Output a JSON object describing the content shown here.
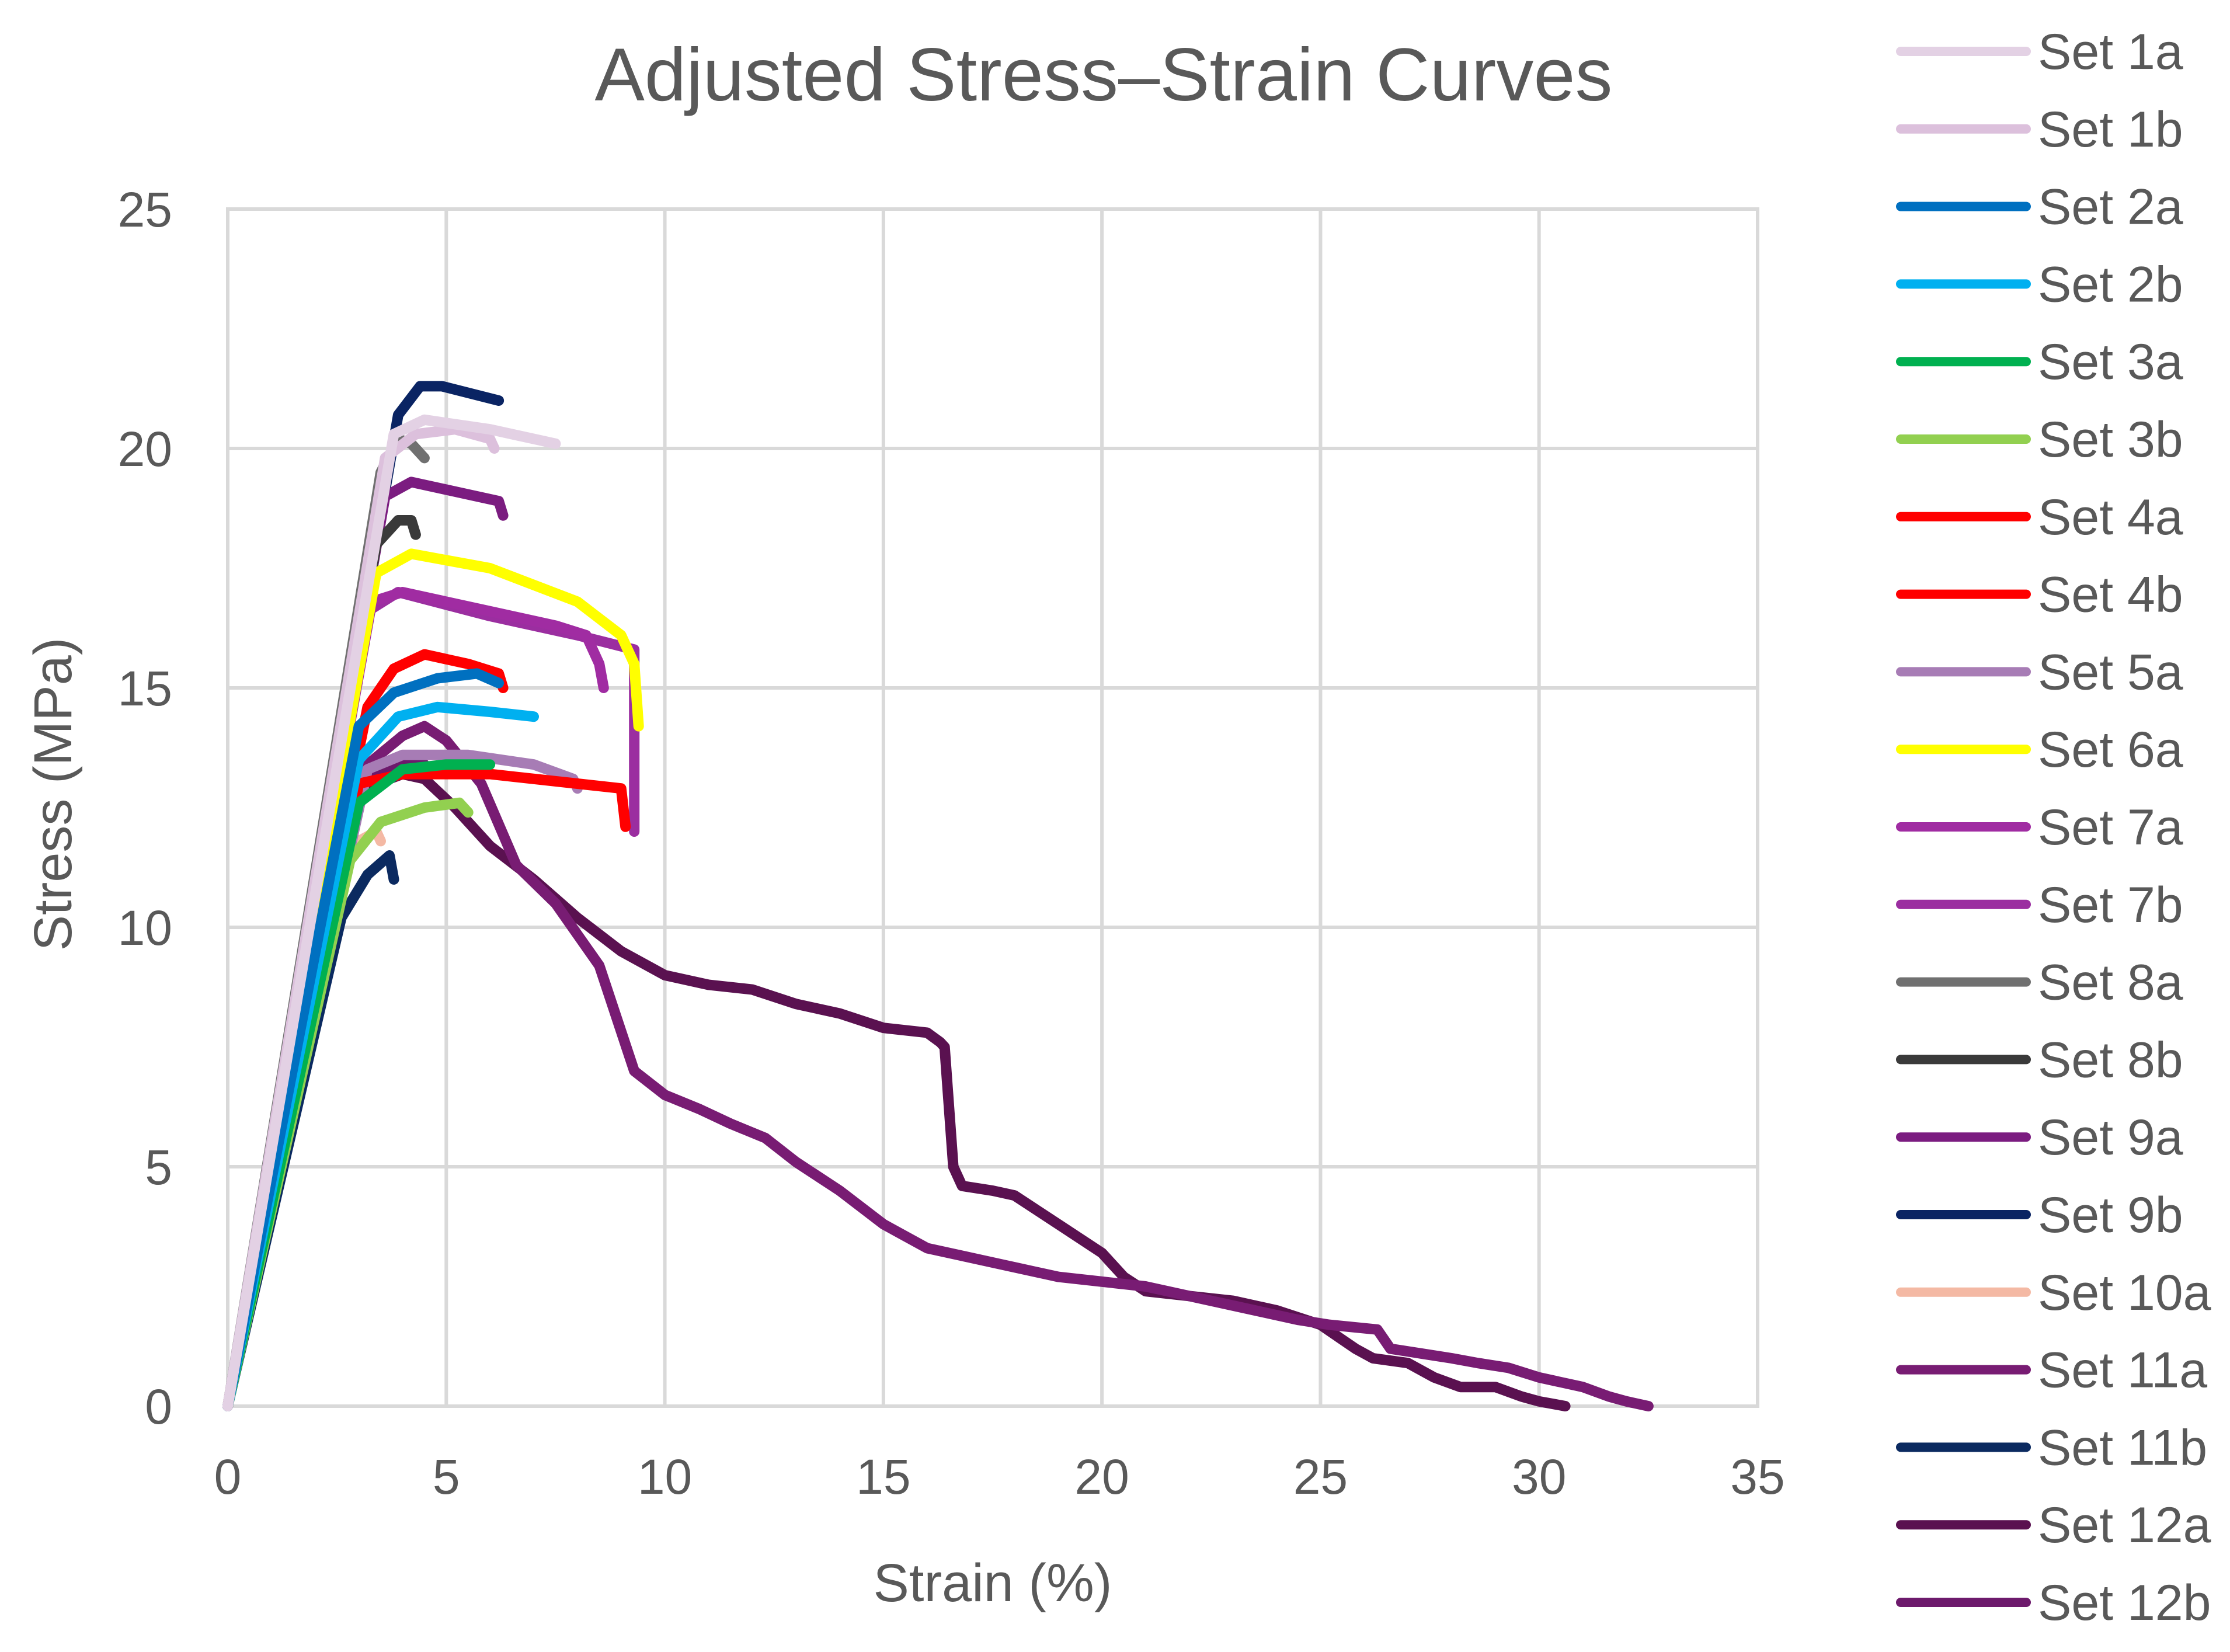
{
  "chart_data": {
    "type": "line",
    "title": "Adjusted Stress–Strain Curves",
    "xlabel": "Strain (%)",
    "ylabel": "Stress (MPa)",
    "xlim": [
      0,
      35
    ],
    "ylim": [
      0,
      25
    ],
    "xticks": [
      "0",
      "5",
      "10",
      "15",
      "20",
      "25",
      "30",
      "35"
    ],
    "yticks": [
      "0",
      "5",
      "10",
      "15",
      "20",
      "25"
    ],
    "grid": true,
    "legend_position": "right",
    "series": [
      {
        "name": "Set 1a",
        "color": "#e3d1e4",
        "points": [
          [
            0,
            0
          ],
          [
            3.8,
            20.3
          ],
          [
            4.5,
            20.6
          ],
          [
            6.0,
            20.4
          ],
          [
            7.5,
            20.1
          ]
        ]
      },
      {
        "name": "Set 1b",
        "color": "#dcc0dc",
        "points": [
          [
            0,
            0
          ],
          [
            3.6,
            19.8
          ],
          [
            4.3,
            20.3
          ],
          [
            5.2,
            20.4
          ],
          [
            6.0,
            20.2
          ],
          [
            6.1,
            20.0
          ]
        ]
      },
      {
        "name": "Set 2a",
        "color": "#0070c0",
        "points": [
          [
            0,
            0
          ],
          [
            3.0,
            14.2
          ],
          [
            3.8,
            14.9
          ],
          [
            4.8,
            15.2
          ],
          [
            5.7,
            15.3
          ],
          [
            6.2,
            15.1
          ]
        ]
      },
      {
        "name": "Set 2b",
        "color": "#00b0f0",
        "points": [
          [
            0,
            0
          ],
          [
            3.0,
            13.5
          ],
          [
            3.9,
            14.4
          ],
          [
            4.8,
            14.6
          ],
          [
            6.0,
            14.5
          ],
          [
            7.0,
            14.4
          ]
        ]
      },
      {
        "name": "Set 3a",
        "color": "#00b050",
        "points": [
          [
            0,
            0
          ],
          [
            3.0,
            12.6
          ],
          [
            4.0,
            13.3
          ],
          [
            5.0,
            13.4
          ],
          [
            6.0,
            13.4
          ]
        ]
      },
      {
        "name": "Set 3b",
        "color": "#92d050",
        "points": [
          [
            0,
            0
          ],
          [
            2.8,
            11.4
          ],
          [
            3.5,
            12.2
          ],
          [
            4.5,
            12.5
          ],
          [
            5.3,
            12.6
          ],
          [
            5.5,
            12.4
          ]
        ]
      },
      {
        "name": "Set 4a",
        "color": "#ff0000",
        "points": [
          [
            0,
            0
          ],
          [
            3.0,
            13.0
          ],
          [
            4.0,
            13.2
          ],
          [
            6.0,
            13.2
          ],
          [
            8.0,
            13.0
          ],
          [
            9.0,
            12.9
          ],
          [
            9.1,
            12.1
          ]
        ]
      },
      {
        "name": "Set 4b",
        "color": "#ff0000",
        "points": [
          [
            0,
            0
          ],
          [
            3.2,
            14.6
          ],
          [
            3.8,
            15.4
          ],
          [
            4.5,
            15.7
          ],
          [
            5.5,
            15.5
          ],
          [
            6.2,
            15.3
          ],
          [
            6.3,
            15.0
          ]
        ]
      },
      {
        "name": "Set 5a",
        "color": "#a77cb5",
        "points": [
          [
            0,
            0
          ],
          [
            3.2,
            13.3
          ],
          [
            4.0,
            13.6
          ],
          [
            5.5,
            13.6
          ],
          [
            7.0,
            13.4
          ],
          [
            7.9,
            13.1
          ],
          [
            8.0,
            12.9
          ]
        ]
      },
      {
        "name": "Set 6a",
        "color": "#ffff00",
        "points": [
          [
            0,
            0
          ],
          [
            3.4,
            17.4
          ],
          [
            4.2,
            17.8
          ],
          [
            6.0,
            17.5
          ],
          [
            8.0,
            16.8
          ],
          [
            9.0,
            16.1
          ],
          [
            9.3,
            15.5
          ],
          [
            9.4,
            14.2
          ]
        ]
      },
      {
        "name": "Set 7a",
        "color": "#a02ca2",
        "points": [
          [
            0,
            0
          ],
          [
            3.3,
            16.8
          ],
          [
            4.0,
            17.0
          ],
          [
            6.0,
            16.6
          ],
          [
            7.5,
            16.3
          ],
          [
            8.2,
            16.1
          ],
          [
            8.5,
            15.5
          ],
          [
            8.6,
            15.0
          ]
        ]
      },
      {
        "name": "Set 7b",
        "color": "#9b2ea0",
        "points": [
          [
            0,
            0
          ],
          [
            3.2,
            16.6
          ],
          [
            3.9,
            17.0
          ],
          [
            6.0,
            16.5
          ],
          [
            8.0,
            16.1
          ],
          [
            9.3,
            15.8
          ],
          [
            9.3,
            12.0
          ]
        ]
      },
      {
        "name": "Set 8a",
        "color": "#707070",
        "points": [
          [
            0,
            0
          ],
          [
            3.5,
            19.5
          ],
          [
            3.9,
            20.2
          ],
          [
            4.2,
            20.1
          ],
          [
            4.5,
            19.8
          ]
        ]
      },
      {
        "name": "Set 8b",
        "color": "#3a3a3a",
        "points": [
          [
            0,
            0
          ],
          [
            3.4,
            18.0
          ],
          [
            3.9,
            18.5
          ],
          [
            4.2,
            18.5
          ],
          [
            4.3,
            18.2
          ]
        ]
      },
      {
        "name": "Set 9a",
        "color": "#7b1c80",
        "points": [
          [
            0,
            0
          ],
          [
            3.6,
            19.0
          ],
          [
            4.2,
            19.3
          ],
          [
            5.2,
            19.1
          ],
          [
            6.2,
            18.9
          ],
          [
            6.3,
            18.6
          ]
        ]
      },
      {
        "name": "Set 9b",
        "color": "#0a2463",
        "points": [
          [
            0,
            0
          ],
          [
            3.9,
            20.7
          ],
          [
            4.4,
            21.3
          ],
          [
            4.9,
            21.3
          ],
          [
            6.2,
            21.0
          ]
        ]
      },
      {
        "name": "Set 10a",
        "color": "#f4b9a4",
        "points": [
          [
            0,
            0
          ],
          [
            2.6,
            11.0
          ],
          [
            3.0,
            11.8
          ],
          [
            3.4,
            12.0
          ],
          [
            3.5,
            11.8
          ]
        ]
      },
      {
        "name": "Set 11a",
        "color": "#781c73",
        "points": [
          [
            0,
            0
          ],
          [
            3.2,
            13.4
          ],
          [
            4.0,
            14.0
          ],
          [
            4.5,
            14.2
          ],
          [
            5.0,
            13.9
          ],
          [
            5.8,
            13.0
          ],
          [
            6.6,
            11.3
          ],
          [
            7.5,
            10.5
          ],
          [
            8.5,
            9.2
          ],
          [
            9.3,
            7.0
          ],
          [
            10.0,
            6.5
          ],
          [
            10.8,
            6.2
          ],
          [
            11.5,
            5.9
          ],
          [
            12.3,
            5.6
          ],
          [
            13.0,
            5.1
          ],
          [
            14.0,
            4.5
          ],
          [
            15.0,
            3.8
          ],
          [
            16.0,
            3.3
          ],
          [
            17.0,
            3.1
          ],
          [
            18.0,
            2.9
          ],
          [
            19.0,
            2.7
          ],
          [
            20.0,
            2.6
          ],
          [
            21.0,
            2.5
          ],
          [
            22.0,
            2.3
          ],
          [
            23.0,
            2.1
          ],
          [
            24.5,
            1.8
          ],
          [
            25.2,
            1.7
          ],
          [
            26.3,
            1.6
          ],
          [
            26.6,
            1.2
          ],
          [
            27.3,
            1.1
          ],
          [
            28.0,
            1.0
          ],
          [
            28.6,
            0.9
          ],
          [
            29.3,
            0.8
          ],
          [
            30.0,
            0.6
          ],
          [
            30.5,
            0.5
          ],
          [
            31.0,
            0.4
          ],
          [
            31.6,
            0.2
          ],
          [
            32.0,
            0.1
          ],
          [
            32.5,
            0.0
          ]
        ]
      },
      {
        "name": "Set 11b",
        "color": "#0b2a60",
        "points": [
          [
            0,
            0
          ],
          [
            2.6,
            10.2
          ],
          [
            3.2,
            11.1
          ],
          [
            3.7,
            11.5
          ],
          [
            3.8,
            11.0
          ]
        ]
      },
      {
        "name": "Set 12a",
        "color": "#5a1150",
        "points": [
          [
            0,
            0
          ],
          [
            3.1,
            12.9
          ],
          [
            4.0,
            13.2
          ],
          [
            4.5,
            13.1
          ],
          [
            5.2,
            12.5
          ],
          [
            6.0,
            11.7
          ],
          [
            7.0,
            11.0
          ],
          [
            8.0,
            10.2
          ],
          [
            9.0,
            9.5
          ],
          [
            10.0,
            9.0
          ],
          [
            11.0,
            8.8
          ],
          [
            12.0,
            8.7
          ],
          [
            13.0,
            8.4
          ],
          [
            14.0,
            8.2
          ],
          [
            15.0,
            7.9
          ],
          [
            16.0,
            7.8
          ],
          [
            16.3,
            7.6
          ],
          [
            16.4,
            7.5
          ],
          [
            16.6,
            5.0
          ],
          [
            16.8,
            4.6
          ],
          [
            17.5,
            4.5
          ],
          [
            18.0,
            4.4
          ],
          [
            19.0,
            3.8
          ],
          [
            20.0,
            3.2
          ],
          [
            20.5,
            2.7
          ],
          [
            21.0,
            2.4
          ],
          [
            22.0,
            2.3
          ],
          [
            23.0,
            2.2
          ],
          [
            24.0,
            2.0
          ],
          [
            25.0,
            1.7
          ],
          [
            25.8,
            1.2
          ],
          [
            26.2,
            1.0
          ],
          [
            27.0,
            0.9
          ],
          [
            27.6,
            0.6
          ],
          [
            28.2,
            0.4
          ],
          [
            29.0,
            0.4
          ],
          [
            29.6,
            0.2
          ],
          [
            30.0,
            0.1
          ],
          [
            30.6,
            0.0
          ]
        ]
      },
      {
        "name": "Set 12b",
        "color": "#6d1a6c",
        "points": [
          [
            0,
            0
          ],
          [
            3.1,
            13.0
          ],
          [
            3.8,
            13.4
          ],
          [
            4.3,
            13.5
          ],
          [
            4.5,
            13.4
          ]
        ]
      }
    ]
  }
}
